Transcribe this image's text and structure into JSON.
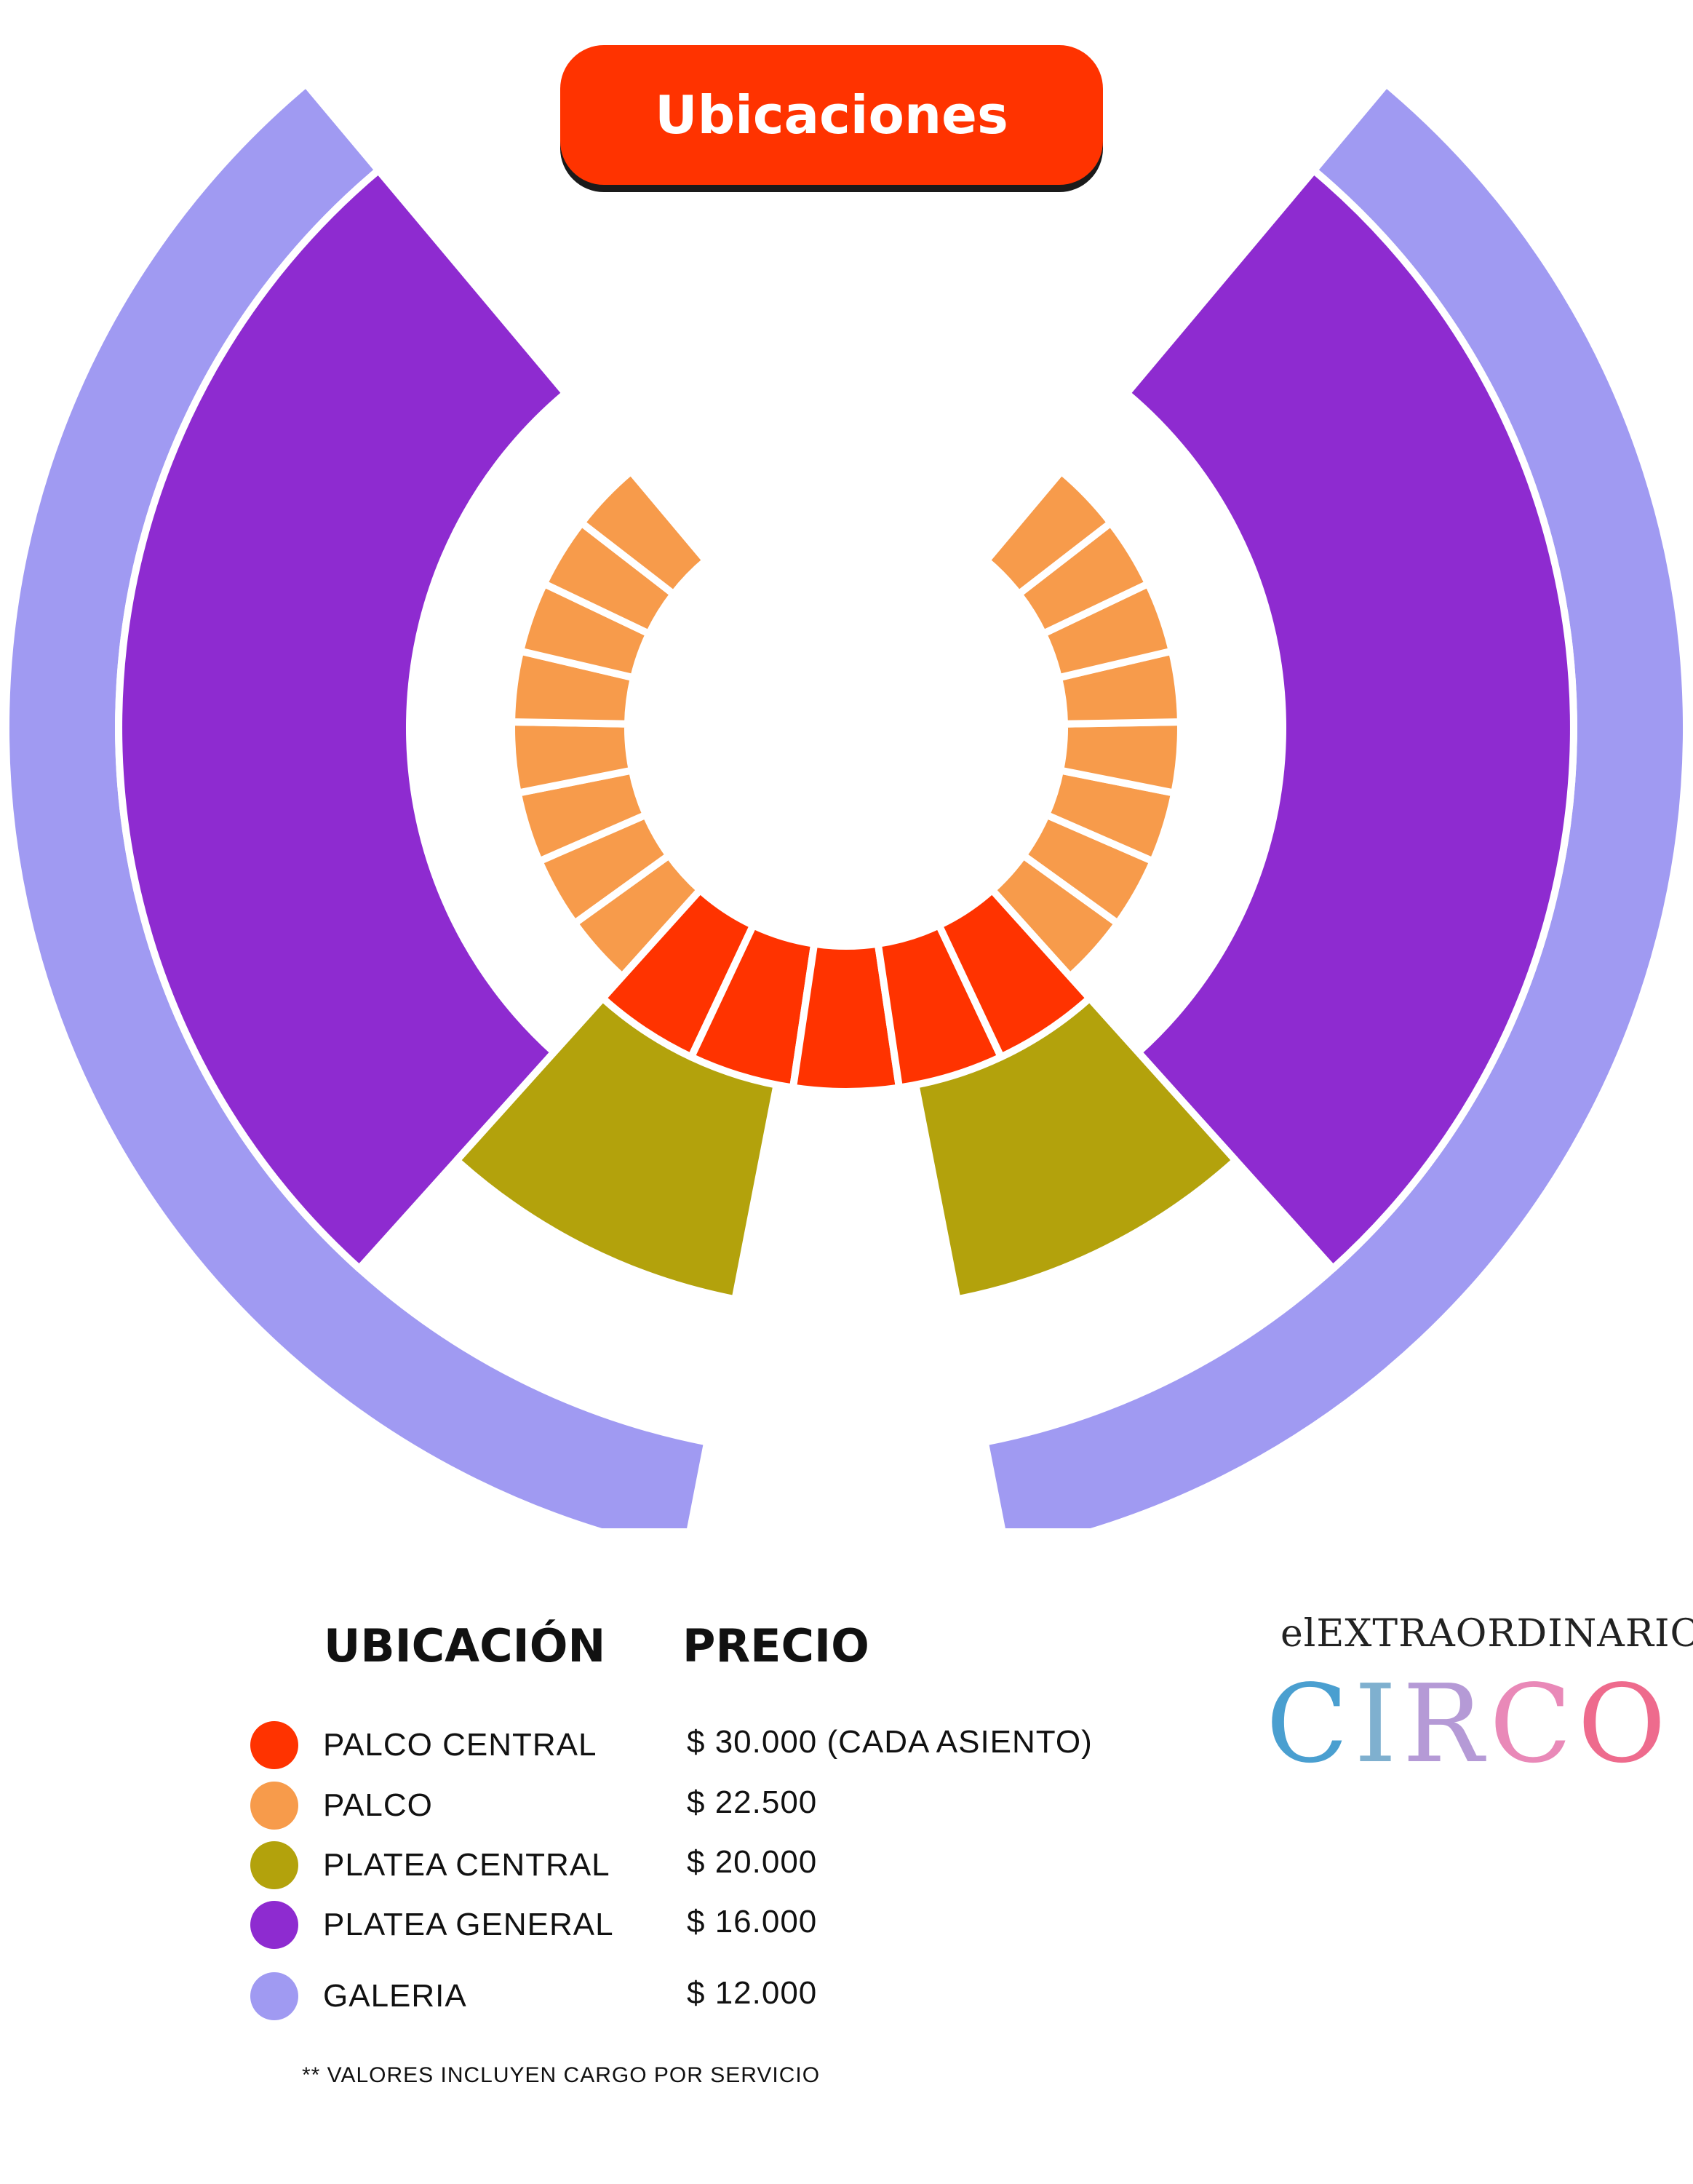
{
  "title": "Ubicaciones",
  "legend": {
    "header_location": "UBICACIÓN",
    "header_price": "PRECIO",
    "items": [
      {
        "name": "PALCO CENTRAL",
        "price": "$ 30.000 (CADA ASIENTO)",
        "color": "#ff3300"
      },
      {
        "name": "PALCO",
        "price": "$ 22.500",
        "color": "#f79b4b"
      },
      {
        "name": "PLATEA CENTRAL",
        "price": "$ 20.000",
        "color": "#b3a20c"
      },
      {
        "name": "PLATEA GENERAL",
        "price": "$ 16.000",
        "color": "#8e2bd0"
      },
      {
        "name": "GALERIA",
        "price": "$ 12.000",
        "color": "#a09af2"
      }
    ],
    "footnote": "** VALORES INCLUYEN CARGO POR SERVICIO"
  },
  "logo": {
    "prefix": "el",
    "word": "EXTRAORDINARIO",
    "main": "CIRCO",
    "main_colors": [
      "#4a9fd0",
      "#7fb0cf",
      "#b59ad6",
      "#e989b8",
      "#ee6b8d"
    ]
  },
  "seating": {
    "palco_central_seats_count": 5,
    "palco_sections_per_side": 8
  }
}
